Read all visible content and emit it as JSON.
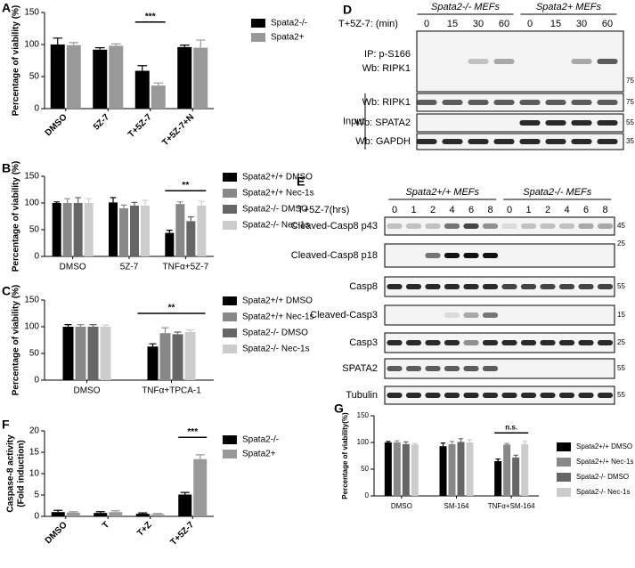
{
  "panel_labels": [
    "A",
    "B",
    "C",
    "D",
    "E",
    "F",
    "G"
  ],
  "chart_data": [
    {
      "type": "bar",
      "ylabel": "Percentage of viability (%)",
      "categories": [
        "DMSO",
        "5Z-7",
        "T+5Z-7",
        "T+5Z-7+N"
      ],
      "ylim": [
        0,
        150
      ],
      "yticks": [
        0,
        50,
        100,
        150
      ],
      "annotation": "***",
      "series": [
        {
          "name": "Spata2-/-",
          "color": "#000000",
          "values": [
            100,
            92,
            59,
            96
          ],
          "errors": [
            10,
            3,
            8,
            3
          ]
        },
        {
          "name": "Spata2+",
          "color": "#999999",
          "values": [
            99,
            98,
            36,
            95
          ],
          "errors": [
            4,
            3,
            4,
            12
          ]
        }
      ]
    },
    {
      "type": "bar",
      "ylabel": "Percentage of viability (%)",
      "categories": [
        "DMSO",
        "5Z-7",
        "TNFα+5Z-7"
      ],
      "ylim": [
        0,
        150
      ],
      "yticks": [
        0,
        50,
        100,
        150
      ],
      "annotation": "**",
      "series": [
        {
          "name": "Spata2+/+ DMSO",
          "color": "#000000",
          "values": [
            100,
            101,
            44
          ],
          "errors": [
            2,
            9,
            5
          ]
        },
        {
          "name": "Spata2+/+ Nec-1s",
          "color": "#888888",
          "values": [
            100,
            90,
            98
          ],
          "errors": [
            8,
            6,
            4
          ]
        },
        {
          "name": "Spata2-/- DMSO",
          "color": "#666666",
          "values": [
            100,
            95,
            66
          ],
          "errors": [
            10,
            6,
            8
          ]
        },
        {
          "name": "Spata2-/- Nec-1s",
          "color": "#cccccc",
          "values": [
            100,
            95,
            95
          ],
          "errors": [
            8,
            10,
            8
          ]
        }
      ]
    },
    {
      "type": "bar",
      "ylabel": "Percentage of viability (%)",
      "categories": [
        "DMSO",
        "TNFα+TPCA-1"
      ],
      "ylim": [
        0,
        150
      ],
      "yticks": [
        0,
        50,
        100,
        150
      ],
      "annotation": "**",
      "series": [
        {
          "name": "Spata2+/+ DMSO",
          "color": "#000000",
          "values": [
            100,
            63
          ],
          "errors": [
            4,
            5
          ]
        },
        {
          "name": "Spata2+/+ Nec-1s",
          "color": "#888888",
          "values": [
            100,
            88
          ],
          "errors": [
            4,
            10
          ]
        },
        {
          "name": "Spata2-/- DMSO",
          "color": "#666666",
          "values": [
            100,
            86
          ],
          "errors": [
            4,
            4
          ]
        },
        {
          "name": "Spata2-/- Nec-1s",
          "color": "#cccccc",
          "values": [
            100,
            90
          ],
          "errors": [
            3,
            4
          ]
        }
      ]
    },
    {
      "type": "bar",
      "ylabel": [
        "Caspase-8 activity",
        "(Fold induction)"
      ],
      "categories": [
        "DMSO",
        "T",
        "T+Z",
        "T+5Z-7"
      ],
      "ylim": [
        0,
        20
      ],
      "yticks": [
        0,
        5,
        10,
        15,
        20
      ],
      "annotation": "***",
      "series": [
        {
          "name": "Spata2-/-",
          "color": "#000000",
          "values": [
            1.0,
            0.8,
            0.6,
            5.1
          ],
          "errors": [
            0.4,
            0.3,
            0.2,
            0.5
          ]
        },
        {
          "name": "Spata2+",
          "color": "#999999",
          "values": [
            0.9,
            1.0,
            0.5,
            13.4
          ],
          "errors": [
            0.2,
            0.3,
            0.2,
            1.0
          ]
        }
      ]
    },
    {
      "type": "bar",
      "ylabel": "Percentage of viability(%)",
      "categories": [
        "DMSO",
        "SM-164",
        "TNFα+SM-164"
      ],
      "ylim": [
        0,
        150
      ],
      "yticks": [
        0,
        50,
        100,
        150
      ],
      "annotation": "n.s.",
      "series": [
        {
          "name": "Spata2+/+ DMSO",
          "color": "#000000",
          "values": [
            100,
            93,
            65
          ],
          "errors": [
            2,
            6,
            4
          ]
        },
        {
          "name": "Spata2+/+ Nec-1s",
          "color": "#888888",
          "values": [
            100,
            97,
            96
          ],
          "errors": [
            3,
            5,
            2
          ]
        },
        {
          "name": "Spata2-/- DMSO",
          "color": "#666666",
          "values": [
            97,
            101,
            72
          ],
          "errors": [
            4,
            6,
            4
          ]
        },
        {
          "name": "Spata2-/- Nec-1s",
          "color": "#cccccc",
          "values": [
            96,
            100,
            97
          ],
          "errors": [
            2,
            5,
            5
          ]
        }
      ]
    }
  ],
  "blots": [
    {
      "header": "T+5Z-7: (min)",
      "groups": [
        "Spata2-/- MEFs",
        "Spata2+ MEFs"
      ],
      "lanes": [
        "0",
        "15",
        "30",
        "60",
        "0",
        "15",
        "30",
        "60"
      ],
      "input_label": "Input",
      "rows": [
        {
          "labels": [
            "IP: p-S166",
            "Wb: RIPK1"
          ],
          "marker": "75"
        },
        {
          "labels": [
            "Wb: RIPK1"
          ],
          "marker": "75"
        },
        {
          "labels": [
            "Wb: SPATA2"
          ],
          "marker": "55"
        },
        {
          "labels": [
            "Wb: GAPDH"
          ],
          "marker": "35"
        }
      ]
    },
    {
      "header": "T+5Z-7(hrs)",
      "groups": [
        "Spata2+/+ MEFs",
        "Spata2-/- MEFs"
      ],
      "lanes": [
        "0",
        "1",
        "2",
        "4",
        "6",
        "8",
        "0",
        "1",
        "2",
        "4",
        "6",
        "8"
      ],
      "rows": [
        {
          "labels": [
            "Cleaved-Casp8 p43"
          ],
          "marker": "45"
        },
        {
          "labels": [
            "Cleaved-Casp8 p18"
          ],
          "marker": "25"
        },
        {
          "labels": [
            "Casp8"
          ],
          "marker": "55"
        },
        {
          "labels": [
            "Cleaved-Casp3"
          ],
          "marker": "15"
        },
        {
          "labels": [
            "Casp3"
          ],
          "marker": "25"
        },
        {
          "labels": [
            "SPATA2"
          ],
          "marker": "55"
        },
        {
          "labels": [
            "Tubulin"
          ],
          "marker": "55"
        }
      ]
    }
  ]
}
